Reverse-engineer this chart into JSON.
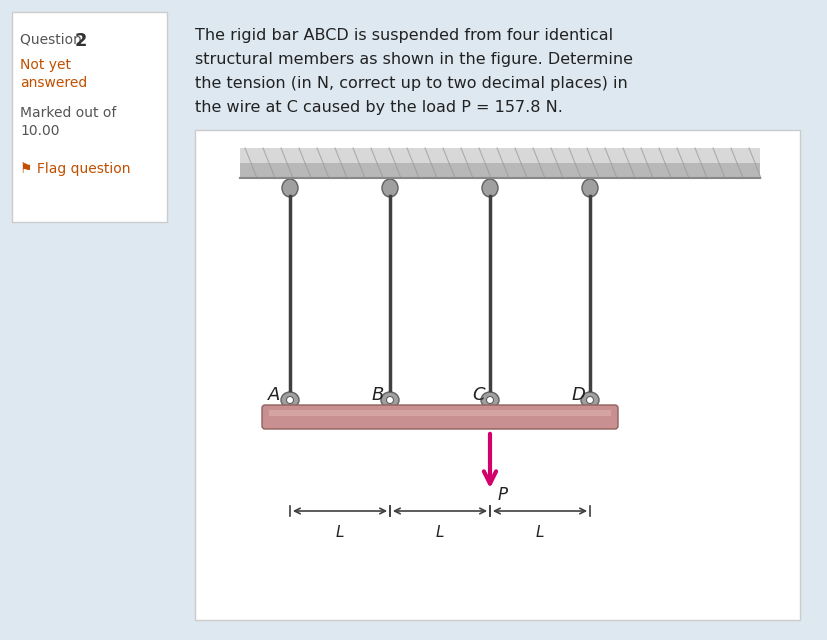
{
  "bg_color": "#dde8f0",
  "panel_bg": "#ffffff",
  "left_box_bg": "#ffffff",
  "left_box_border": "#cccccc",
  "question_label": "Question ",
  "question_num": "2",
  "not_yet": "Not yet",
  "answered": "answered",
  "marked_out_of": "Marked out of",
  "score": "10.00",
  "flag_text": "Flag question",
  "problem_text_line1": "The rigid bar ABCD is suspended from four identical",
  "problem_text_line2": "structural members as shown in the figure. Determine",
  "problem_text_line3": "the tension (in N, correct up to two decimal places) in",
  "problem_text_line4": "the wire at C caused by the load P = 157.8 N.",
  "ceiling_color": "#b0b0b0",
  "ceiling_top_color": "#d0d0d0",
  "wire_color": "#404040",
  "connector_color": "#909090",
  "bar_color_top": "#d4a0a0",
  "bar_color_bottom": "#b08080",
  "load_arrow_color": "#d4006a",
  "dim_line_color": "#404040",
  "labels": [
    "A",
    "B",
    "C",
    "D"
  ],
  "dim_label": "L",
  "load_label": "P",
  "figure_bg": "#f0f5f8"
}
